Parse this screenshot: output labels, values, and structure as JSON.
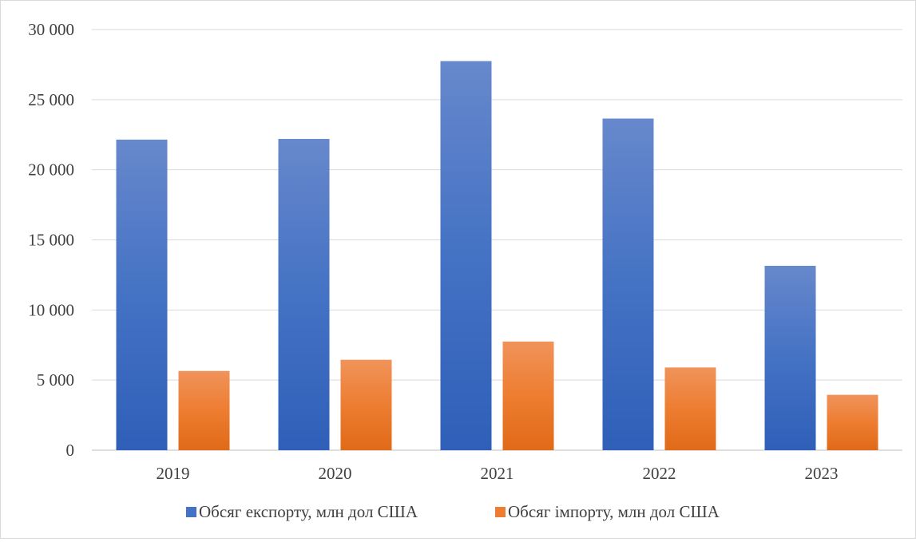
{
  "chart_data": {
    "type": "bar",
    "categories": [
      "2019",
      "2020",
      "2021",
      "2022",
      "2023"
    ],
    "series": [
      {
        "name": "Обсяг експорту, млн дол США",
        "color": "#4472C4",
        "values": [
          22150,
          22200,
          27750,
          23650,
          13150
        ]
      },
      {
        "name": "Обсяг імпорту, млн дол США",
        "color": "#ED7D31",
        "values": [
          5650,
          6450,
          7750,
          5900,
          3950
        ]
      }
    ],
    "ylim": [
      0,
      30000
    ],
    "yticks": [
      0,
      5000,
      10000,
      15000,
      20000,
      25000,
      30000
    ],
    "ytick_labels": [
      "0",
      "5 000",
      "10 000",
      "15 000",
      "20 000",
      "25 000",
      "30 000"
    ],
    "grid": true,
    "legend": "bottom"
  }
}
